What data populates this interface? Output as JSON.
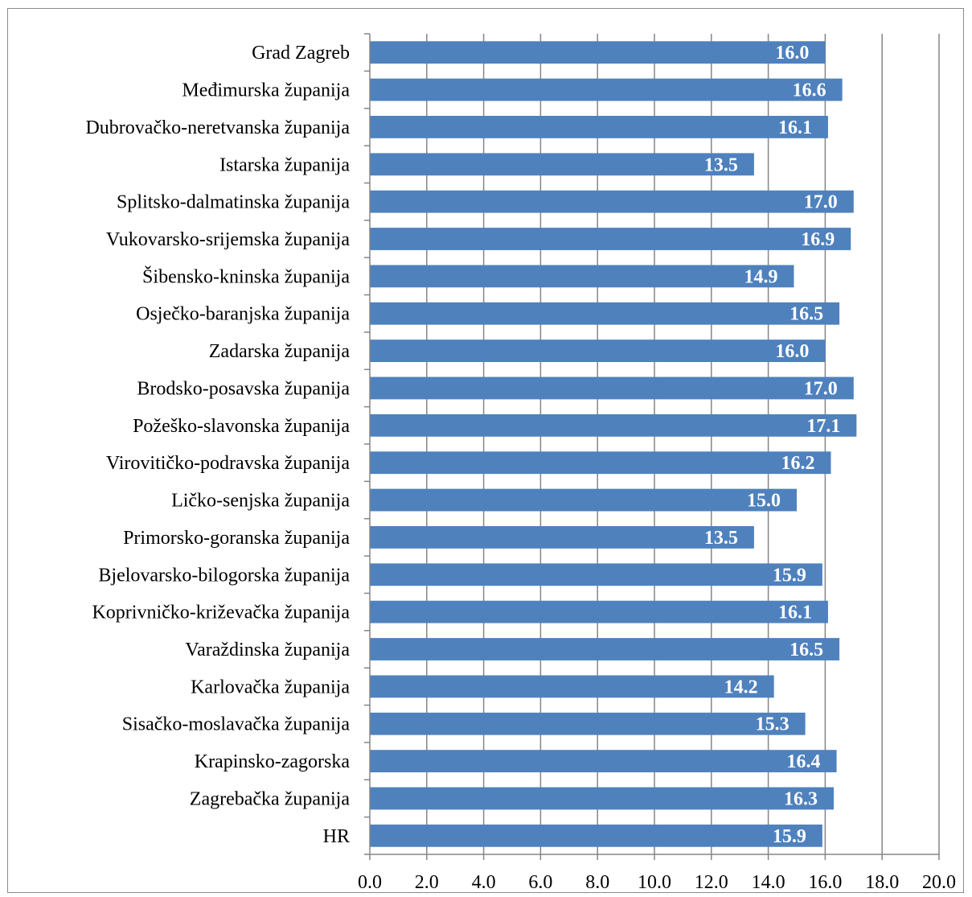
{
  "chart_data": {
    "type": "bar",
    "orientation": "horizontal",
    "categories": [
      "Grad Zagreb",
      "Međimurska županija",
      "Dubrovačko-neretvanska županija",
      "Istarska županija",
      "Splitsko-dalmatinska županija",
      "Vukovarsko-srijemska županija",
      "Šibensko-kninska županija",
      "Osječko-baranjska županija",
      "Zadarska županija",
      "Brodsko-posavska županija",
      "Požeško-slavonska županija",
      "Virovitičko-podravska županija",
      "Ličko-senjska županija",
      "Primorsko-goranska županija",
      "Bjelovarsko-bilogorska županija",
      "Koprivničko-križevačka županija",
      "Varaždinska županija",
      "Karlovačka županija",
      "Sisačko-moslavačka županija",
      "Krapinsko-zagorska",
      "Zagrebačka županija",
      "HR"
    ],
    "values": [
      16.0,
      16.6,
      16.1,
      13.5,
      17.0,
      16.9,
      14.9,
      16.5,
      16.0,
      17.0,
      17.1,
      16.2,
      15.0,
      13.5,
      15.9,
      16.1,
      16.5,
      14.2,
      15.3,
      16.4,
      16.3,
      15.9
    ],
    "data_labels": [
      "16.0",
      "16.6",
      "16.1",
      "13.5",
      "17.0",
      "16.9",
      "14.9",
      "16.5",
      "16.0",
      "17.0",
      "17.1",
      "16.2",
      "15.0",
      "13.5",
      "15.9",
      "16.1",
      "16.5",
      "14.2",
      "15.3",
      "16.4",
      "16.3",
      "15.9"
    ],
    "x_ticks": [
      "0.0",
      "2.0",
      "4.0",
      "6.0",
      "8.0",
      "10.0",
      "12.0",
      "14.0",
      "16.0",
      "18.0",
      "20.0"
    ],
    "xlim": [
      0,
      20
    ],
    "title": "",
    "xlabel": "",
    "ylabel": "",
    "grid": "vertical",
    "legend": "none",
    "colors": {
      "bar": "#4f81bd",
      "grid": "#868686",
      "axis": "#868686",
      "data_label": "#ffffff",
      "text": "#000000"
    }
  }
}
